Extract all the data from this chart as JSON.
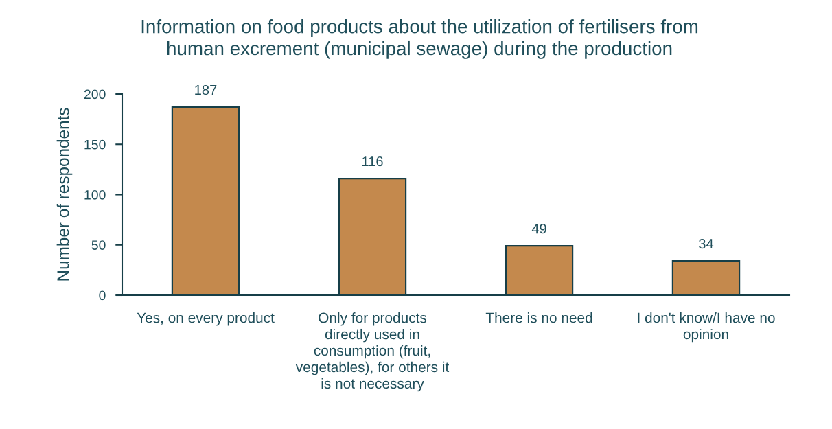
{
  "chart_data": {
    "type": "bar",
    "title": "Information on food products about the utilization of fertilisers from human excrement (municipal sewage) during the production",
    "ylabel": "Number of respondents",
    "categories": [
      "Yes, on every product",
      "Only for products directly used in consumption (fruit, vegetables), for others it is not necessary",
      "There is no need",
      "I don't know/I have no opinion"
    ],
    "values": [
      187,
      116,
      49,
      34
    ],
    "color": "#c4894d",
    "ylim": [
      0,
      200
    ],
    "yticks": [
      0,
      50,
      100,
      150,
      200
    ],
    "grid": false,
    "legend": false,
    "data_labels": true
  }
}
